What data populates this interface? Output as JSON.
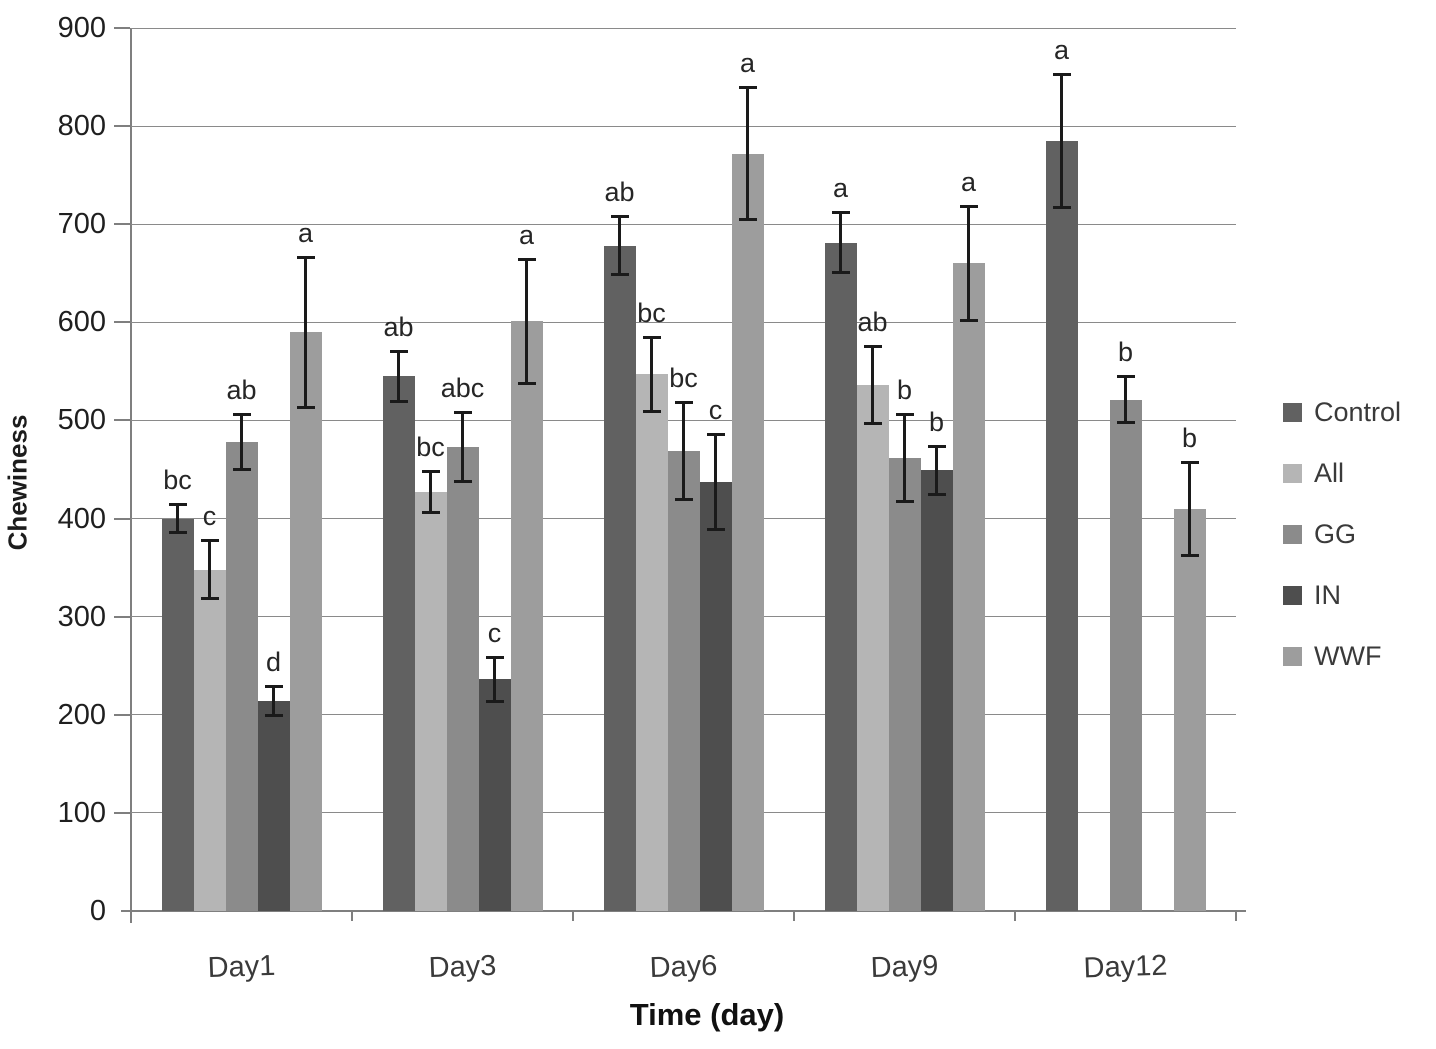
{
  "chart_data": {
    "type": "bar",
    "title": "",
    "xlabel": "Time (day)",
    "ylabel": "Chewiness",
    "ylim": [
      0,
      900
    ],
    "ytick_step": 100,
    "grid": true,
    "legend_position": "right",
    "categories": [
      "Day1",
      "Day3",
      "Day6",
      "Day9",
      "Day12"
    ],
    "series": [
      {
        "name": "Control",
        "color": "#616161",
        "values": [
          400,
          545,
          678,
          681,
          785
        ],
        "errors": [
          15,
          26,
          30,
          31,
          68
        ],
        "letters": [
          "bc",
          "ab",
          "ab",
          "a",
          "a"
        ]
      },
      {
        "name": "All",
        "color": "#b5b5b5",
        "values": [
          348,
          427,
          547,
          536,
          null
        ],
        "errors": [
          30,
          21,
          38,
          40,
          null
        ],
        "letters": [
          "c",
          "bc",
          "bc",
          "ab",
          null
        ]
      },
      {
        "name": "GG",
        "color": "#8b8b8b",
        "values": [
          478,
          473,
          469,
          462,
          521
        ],
        "errors": [
          29,
          36,
          50,
          45,
          24
        ],
        "letters": [
          "ab",
          "abc",
          "bc",
          "b",
          "b"
        ]
      },
      {
        "name": "IN",
        "color": "#4e4e4e",
        "values": [
          214,
          236,
          437,
          449,
          null
        ],
        "errors": [
          15,
          23,
          49,
          25,
          null
        ],
        "letters": [
          "d",
          "c",
          "c",
          "b",
          null
        ]
      },
      {
        "name": "WWF",
        "color": "#9d9d9d",
        "values": [
          590,
          601,
          772,
          660,
          410
        ],
        "errors": [
          77,
          64,
          68,
          59,
          48
        ],
        "letters": [
          "a",
          "a",
          "a",
          "a",
          "b"
        ]
      }
    ]
  }
}
